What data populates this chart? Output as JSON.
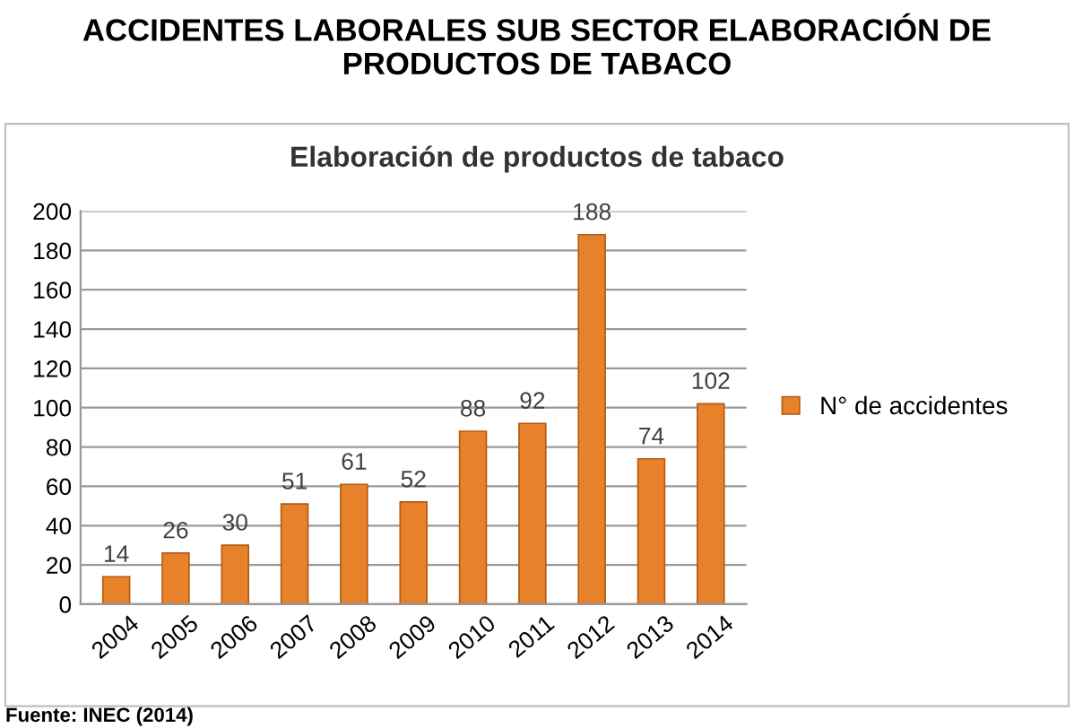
{
  "chart_data": {
    "type": "bar",
    "title": "ACCIDENTES LABORALES SUB SECTOR ELABORACIÓN DE PRODUCTOS DE TABACO",
    "subtitle": "Elaboración de productos de tabaco",
    "categories": [
      "2004",
      "2005",
      "2006",
      "2007",
      "2008",
      "2009",
      "2010",
      "2011",
      "2012",
      "2013",
      "2014"
    ],
    "series": [
      {
        "name": "N° de accidentes",
        "color": "#e8822a",
        "values": [
          14,
          26,
          30,
          51,
          61,
          52,
          88,
          92,
          188,
          74,
          102
        ]
      }
    ],
    "ylim": [
      0,
      200
    ],
    "yticks": [
      0,
      20,
      40,
      60,
      80,
      100,
      120,
      140,
      160,
      180,
      200
    ],
    "grid": "y",
    "legend": "right",
    "data_labels": true,
    "annotations": [
      "Fuente: INEC (2014)"
    ]
  }
}
